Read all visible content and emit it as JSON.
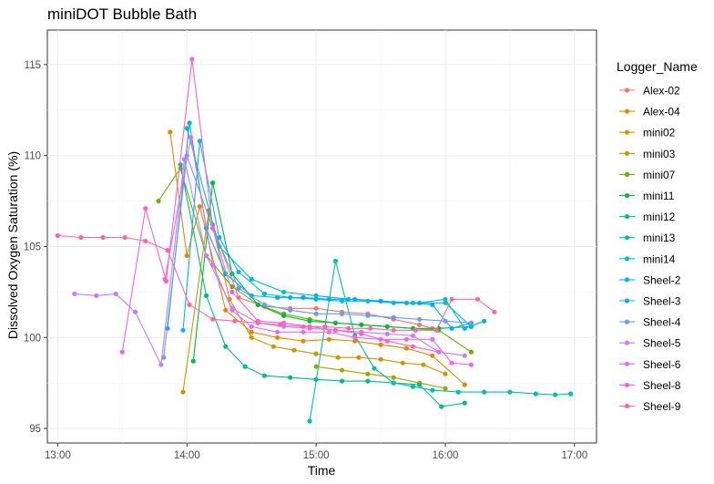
{
  "chart_data": {
    "type": "line",
    "title": "miniDOT Bubble Bath",
    "xlabel": "Time",
    "ylabel": "Dissolved Oxygen Saturation (%)",
    "x_unit": "hours",
    "xlim": [
      12.92,
      17.17
    ],
    "ylim": [
      94.2,
      116.9
    ],
    "x_ticks": [
      13,
      14,
      15,
      16,
      17
    ],
    "x_tick_labels": [
      "13:00",
      "14:00",
      "15:00",
      "16:00",
      "17:00"
    ],
    "y_ticks": [
      95,
      100,
      105,
      110,
      115
    ],
    "y_tick_labels": [
      "95",
      "100",
      "105",
      "110",
      "115"
    ],
    "grid": true,
    "legend_title": "Logger_Name",
    "legend_position": "right",
    "series": [
      {
        "name": "Alex-02",
        "color": "#F8766D",
        "x": [
          14.2,
          14.4,
          14.6,
          14.8,
          15.0,
          15.2,
          15.4,
          15.6,
          15.8,
          15.9
        ],
        "y": [
          106.2,
          102.2,
          101.7,
          101.6,
          101.6,
          101.4,
          101.3,
          101.0,
          100.7,
          100.5
        ]
      },
      {
        "name": "Alex-04",
        "color": "#E58700",
        "x": [
          13.87,
          14.0,
          14.1,
          14.3,
          14.5,
          14.7,
          14.9,
          15.1,
          15.3,
          15.5,
          15.7,
          15.9,
          16.15
        ],
        "y": [
          111.3,
          104.5,
          107.2,
          101.5,
          100.3,
          100.0,
          99.8,
          99.9,
          99.8,
          99.6,
          99.4,
          99.0,
          97.4
        ]
      },
      {
        "name": "mini02",
        "color": "#C99800",
        "x": [
          13.97,
          14.17,
          14.33,
          14.5,
          14.67,
          14.83,
          15.0,
          15.17,
          15.33,
          15.5,
          15.67,
          15.83,
          16.0
        ],
        "y": [
          97.0,
          107.0,
          102.1,
          100.0,
          99.5,
          99.3,
          99.1,
          98.9,
          98.9,
          98.8,
          98.6,
          98.5,
          98.0
        ]
      },
      {
        "name": "mini03",
        "color": "#A3A500",
        "x": [
          15.0,
          15.2,
          15.4,
          15.6,
          15.8,
          16.0
        ],
        "y": [
          98.4,
          98.2,
          98.0,
          97.8,
          97.5,
          97.2
        ]
      },
      {
        "name": "mini07",
        "color": "#6BB100",
        "x": [
          13.78,
          13.95,
          14.15,
          14.35,
          14.55,
          14.75,
          14.95,
          15.15,
          15.35,
          15.55,
          15.75,
          15.95,
          16.2
        ],
        "y": [
          107.5,
          109.3,
          104.5,
          102.8,
          101.8,
          101.3,
          101.0,
          100.8,
          100.7,
          100.6,
          100.5,
          100.4,
          99.2
        ]
      },
      {
        "name": "mini11",
        "color": "#00BA38",
        "x": [
          14.05,
          14.2,
          14.35,
          14.55,
          14.75,
          14.95,
          15.15,
          15.35,
          15.55,
          15.75,
          15.95,
          16.2
        ],
        "y": [
          98.7,
          108.5,
          103.5,
          101.8,
          101.2,
          100.9,
          100.8,
          100.7,
          100.6,
          100.5,
          100.5,
          100.6
        ]
      },
      {
        "name": "mini12",
        "color": "#00BF7D",
        "x": [
          13.95,
          14.15,
          14.3,
          14.45,
          14.6,
          14.8,
          15.0,
          15.2,
          15.4,
          15.6,
          15.8,
          15.97,
          16.15
        ],
        "y": [
          109.5,
          102.3,
          99.5,
          98.4,
          97.9,
          97.8,
          97.7,
          97.6,
          97.6,
          97.5,
          97.4,
          96.2,
          96.4
        ]
      },
      {
        "name": "mini13",
        "color": "#00C1A3",
        "x": [
          14.95,
          15.15,
          15.3,
          15.45,
          15.6,
          15.75,
          15.9,
          16.1,
          16.3,
          16.5,
          16.7,
          16.85,
          16.97
        ],
        "y": [
          95.4,
          104.2,
          100.1,
          98.3,
          97.5,
          97.3,
          97.1,
          97.0,
          97.0,
          97.0,
          96.9,
          96.85,
          96.9
        ]
      },
      {
        "name": "mini14",
        "color": "#00BFC4",
        "x": [
          14.0,
          14.25,
          14.5,
          14.75,
          15.0,
          15.25,
          15.5,
          15.75,
          16.0,
          16.2
        ],
        "y": [
          111.5,
          105.0,
          103.2,
          102.5,
          102.3,
          102.1,
          102.0,
          101.9,
          101.9,
          100.6
        ]
      },
      {
        "name": "Sheel-2",
        "color": "#00B9E3",
        "x": [
          13.97,
          14.1,
          14.25,
          14.4,
          14.6,
          14.8,
          15.0,
          15.2,
          15.4,
          15.6,
          15.8,
          16.0,
          16.15,
          16.3
        ],
        "y": [
          100.4,
          110.8,
          105.5,
          103.6,
          102.4,
          102.2,
          102.1,
          102.0,
          102.0,
          101.9,
          101.9,
          102.1,
          100.5,
          100.9
        ]
      },
      {
        "name": "Sheel-3",
        "color": "#00ADFA",
        "x": [
          13.85,
          14.02,
          14.15,
          14.3,
          14.5,
          14.7,
          14.9,
          15.1,
          15.3,
          15.5,
          15.7,
          15.9,
          16.05,
          16.2
        ],
        "y": [
          100.5,
          111.8,
          106.0,
          103.5,
          102.3,
          102.2,
          102.2,
          102.1,
          102.1,
          102.0,
          101.9,
          101.8,
          100.5,
          100.8
        ]
      },
      {
        "name": "Sheel-4",
        "color": "#619CFF",
        "x": [
          13.82,
          14.0,
          14.2,
          14.4,
          14.6,
          14.8,
          15.0,
          15.2,
          15.4,
          15.6,
          15.8,
          16.0,
          16.2
        ],
        "y": [
          98.9,
          110.0,
          106.0,
          102.7,
          101.8,
          101.5,
          101.3,
          101.3,
          101.2,
          101.1,
          101.0,
          100.9,
          100.8
        ]
      },
      {
        "name": "Sheel-5",
        "color": "#B983FF",
        "x": [
          13.13,
          13.3,
          13.45,
          13.6,
          13.8,
          13.98,
          14.15,
          14.35,
          14.55,
          14.75,
          14.95,
          15.15,
          15.35,
          15.55,
          15.75,
          15.95,
          16.15
        ],
        "y": [
          102.4,
          102.3,
          102.4,
          101.4,
          98.5,
          109.8,
          104.5,
          101.6,
          100.8,
          100.6,
          100.5,
          100.4,
          100.3,
          100.2,
          100.1,
          99.2,
          99.0
        ]
      },
      {
        "name": "Sheel-6",
        "color": "#E76BF3",
        "x": [
          13.83,
          14.03,
          14.2,
          14.35,
          14.5,
          14.7,
          14.9,
          15.1,
          15.3,
          15.5,
          15.7,
          15.9,
          16.05,
          16.2
        ],
        "y": [
          103.2,
          111.0,
          104.0,
          101.5,
          100.6,
          100.3,
          100.3,
          100.3,
          100.0,
          99.9,
          99.9,
          99.9,
          98.6,
          98.5
        ]
      },
      {
        "name": "Sheel-8",
        "color": "#FD61D1",
        "x": [
          13.5,
          13.68,
          13.84,
          14.04,
          14.2,
          14.35,
          14.55,
          14.75,
          14.95,
          15.15,
          15.35,
          15.55,
          15.75,
          15.95
        ],
        "y": [
          99.2,
          107.1,
          103.1,
          115.3,
          106.0,
          102.5,
          100.9,
          100.8,
          100.6,
          100.4,
          100.2,
          99.8,
          99.5,
          99.2
        ]
      },
      {
        "name": "Sheel-9",
        "color": "#FF67A4",
        "x": [
          13.0,
          13.18,
          13.35,
          13.52,
          13.68,
          13.85,
          14.02,
          14.2,
          14.37,
          14.55,
          14.72,
          14.9,
          15.07,
          15.25,
          15.42,
          15.6,
          15.77,
          15.93,
          16.05,
          16.25,
          16.38
        ],
        "y": [
          105.6,
          105.5,
          105.5,
          105.5,
          105.3,
          104.8,
          101.8,
          101.0,
          100.9,
          100.8,
          100.7,
          100.6,
          100.6,
          100.5,
          100.5,
          100.4,
          100.4,
          100.4,
          102.1,
          102.1,
          101.4
        ]
      }
    ]
  }
}
